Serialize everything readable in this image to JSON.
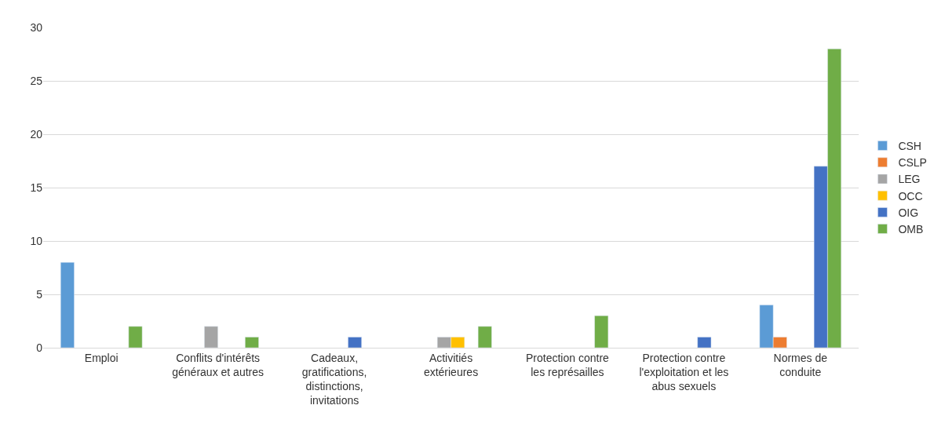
{
  "chart_data": {
    "type": "bar",
    "categories": [
      "Emploi",
      "Conflits d'intérêts\ngénéraux et autres",
      "Cadeaux,\ngratifications,\ndistinctions,\ninvitations",
      "Activitiés\nextérieures",
      "Protection contre\nles représailles",
      "Protection contre\nl'exploitation et les\nabus sexuels",
      "Normes de\nconduite"
    ],
    "series": [
      {
        "name": "CSH",
        "color": "#5b9bd5",
        "values": [
          8,
          null,
          null,
          null,
          null,
          null,
          4
        ]
      },
      {
        "name": "CSLP",
        "color": "#ed7d31",
        "values": [
          null,
          null,
          null,
          null,
          null,
          null,
          1
        ]
      },
      {
        "name": "LEG",
        "color": "#a5a5a5",
        "values": [
          null,
          2,
          null,
          1,
          null,
          null,
          null
        ]
      },
      {
        "name": "OCC",
        "color": "#ffc000",
        "values": [
          null,
          null,
          null,
          1,
          null,
          null,
          null
        ]
      },
      {
        "name": "OIG",
        "color": "#4472c4",
        "values": [
          null,
          null,
          1,
          null,
          null,
          1,
          17
        ]
      },
      {
        "name": "OMB",
        "color": "#70ad47",
        "values": [
          2,
          1,
          null,
          2,
          3,
          null,
          28
        ]
      }
    ],
    "ylim": [
      0,
      30
    ],
    "yticks": [
      0,
      5,
      10,
      15,
      20,
      25,
      30
    ],
    "grid": "y",
    "legend": "right"
  }
}
